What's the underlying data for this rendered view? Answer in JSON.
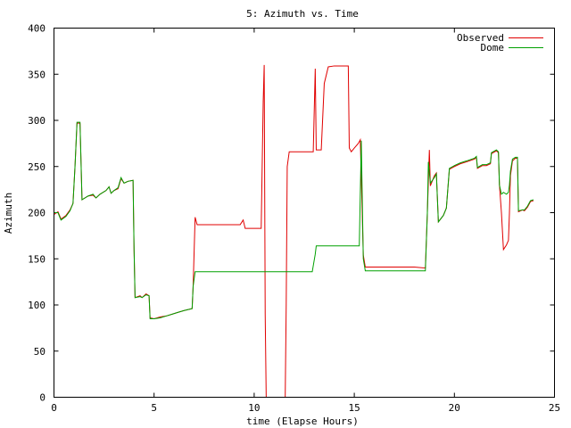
{
  "chart_data": {
    "type": "line",
    "title": "5: Azimuth vs. Time",
    "xlabel": "time (Elapse Hours)",
    "ylabel": "Azimuth",
    "xlim": [
      0,
      25
    ],
    "ylim": [
      0,
      400
    ],
    "x_ticks": [
      0,
      5,
      10,
      15,
      20,
      25
    ],
    "y_ticks": [
      0,
      50,
      100,
      150,
      200,
      250,
      300,
      350,
      400
    ],
    "grid": false,
    "legend": "top-right",
    "series": [
      {
        "name": "Observed",
        "color": "#e00000",
        "points": [
          [
            0.0,
            198
          ],
          [
            0.2,
            201
          ],
          [
            0.35,
            193
          ],
          [
            0.6,
            197
          ],
          [
            0.8,
            203
          ],
          [
            0.95,
            210
          ],
          [
            1.05,
            250
          ],
          [
            1.15,
            297
          ],
          [
            1.3,
            297
          ],
          [
            1.4,
            214
          ],
          [
            1.7,
            218
          ],
          [
            1.95,
            219
          ],
          [
            2.1,
            216
          ],
          [
            2.3,
            220
          ],
          [
            2.6,
            224
          ],
          [
            2.75,
            228
          ],
          [
            2.85,
            221
          ],
          [
            3.0,
            224
          ],
          [
            3.2,
            226
          ],
          [
            3.35,
            237
          ],
          [
            3.5,
            232
          ],
          [
            3.7,
            234
          ],
          [
            3.95,
            235
          ],
          [
            4.0,
            160
          ],
          [
            4.05,
            108
          ],
          [
            4.3,
            110
          ],
          [
            4.4,
            108
          ],
          [
            4.6,
            112
          ],
          [
            4.75,
            110
          ],
          [
            4.8,
            86
          ],
          [
            5.0,
            85
          ],
          [
            5.3,
            87
          ],
          [
            5.6,
            88
          ],
          [
            5.9,
            90
          ],
          [
            6.2,
            92
          ],
          [
            6.5,
            94
          ],
          [
            6.9,
            96
          ],
          [
            6.95,
            120
          ],
          [
            7.05,
            195
          ],
          [
            7.15,
            187
          ],
          [
            7.5,
            187
          ],
          [
            8.5,
            187
          ],
          [
            9.3,
            187
          ],
          [
            9.45,
            192
          ],
          [
            9.55,
            183
          ],
          [
            10.0,
            183
          ],
          [
            10.35,
            183
          ],
          [
            10.45,
            320
          ],
          [
            10.5,
            360
          ],
          [
            10.55,
            90
          ],
          [
            10.6,
            0
          ],
          [
            11.55,
            0
          ],
          [
            11.6,
            100
          ],
          [
            11.65,
            250
          ],
          [
            11.75,
            266
          ],
          [
            12.5,
            266
          ],
          [
            12.95,
            266
          ],
          [
            13.05,
            356
          ],
          [
            13.1,
            268
          ],
          [
            13.35,
            268
          ],
          [
            13.5,
            340
          ],
          [
            13.7,
            358
          ],
          [
            14.0,
            359
          ],
          [
            14.5,
            359
          ],
          [
            14.7,
            359
          ],
          [
            14.75,
            270
          ],
          [
            14.85,
            266
          ],
          [
            15.0,
            270
          ],
          [
            15.2,
            275
          ],
          [
            15.3,
            279
          ],
          [
            15.45,
            154
          ],
          [
            15.55,
            141
          ],
          [
            16.5,
            141
          ],
          [
            18.0,
            141
          ],
          [
            18.55,
            140
          ],
          [
            18.65,
            200
          ],
          [
            18.75,
            268
          ],
          [
            18.8,
            229
          ],
          [
            19.0,
            240
          ],
          [
            19.1,
            243
          ],
          [
            19.2,
            190
          ],
          [
            19.45,
            197
          ],
          [
            19.6,
            205
          ],
          [
            19.75,
            247
          ],
          [
            20.0,
            250
          ],
          [
            20.3,
            253
          ],
          [
            20.6,
            255
          ],
          [
            21.0,
            258
          ],
          [
            21.1,
            260
          ],
          [
            21.15,
            248
          ],
          [
            21.4,
            251
          ],
          [
            21.6,
            251
          ],
          [
            21.8,
            253
          ],
          [
            21.85,
            264
          ],
          [
            22.1,
            267
          ],
          [
            22.2,
            265
          ],
          [
            22.25,
            230
          ],
          [
            22.35,
            200
          ],
          [
            22.45,
            160
          ],
          [
            22.6,
            165
          ],
          [
            22.7,
            170
          ],
          [
            22.75,
            200
          ],
          [
            22.8,
            240
          ],
          [
            22.9,
            256
          ],
          [
            23.05,
            259
          ],
          [
            23.15,
            259
          ],
          [
            23.2,
            201
          ],
          [
            23.4,
            203
          ],
          [
            23.5,
            202
          ],
          [
            23.65,
            206
          ],
          [
            23.8,
            212
          ],
          [
            23.95,
            213
          ]
        ]
      },
      {
        "name": "Dome",
        "color": "#00a000",
        "points": [
          [
            0.0,
            200
          ],
          [
            0.2,
            200
          ],
          [
            0.35,
            192
          ],
          [
            0.6,
            196
          ],
          [
            0.8,
            202
          ],
          [
            0.95,
            210
          ],
          [
            1.05,
            250
          ],
          [
            1.15,
            298
          ],
          [
            1.3,
            298
          ],
          [
            1.4,
            214
          ],
          [
            1.7,
            218
          ],
          [
            1.95,
            220
          ],
          [
            2.1,
            216
          ],
          [
            2.3,
            220
          ],
          [
            2.6,
            224
          ],
          [
            2.75,
            228
          ],
          [
            2.85,
            221
          ],
          [
            3.0,
            224
          ],
          [
            3.2,
            227
          ],
          [
            3.35,
            238
          ],
          [
            3.5,
            232
          ],
          [
            3.7,
            234
          ],
          [
            3.95,
            235
          ],
          [
            4.0,
            160
          ],
          [
            4.05,
            108
          ],
          [
            4.3,
            109
          ],
          [
            4.4,
            108
          ],
          [
            4.6,
            111
          ],
          [
            4.75,
            110
          ],
          [
            4.8,
            85
          ],
          [
            5.0,
            85
          ],
          [
            5.3,
            86
          ],
          [
            5.6,
            88
          ],
          [
            5.9,
            90
          ],
          [
            6.2,
            92
          ],
          [
            6.5,
            94
          ],
          [
            6.9,
            96
          ],
          [
            6.95,
            120
          ],
          [
            7.05,
            136
          ],
          [
            8.0,
            136
          ],
          [
            9.0,
            136
          ],
          [
            10.0,
            136
          ],
          [
            11.0,
            136
          ],
          [
            12.0,
            136
          ],
          [
            12.9,
            136
          ],
          [
            13.05,
            155
          ],
          [
            13.1,
            164
          ],
          [
            14.0,
            164
          ],
          [
            14.5,
            164
          ],
          [
            15.0,
            164
          ],
          [
            15.25,
            164
          ],
          [
            15.35,
            278
          ],
          [
            15.45,
            150
          ],
          [
            15.55,
            137
          ],
          [
            16.5,
            137
          ],
          [
            17.5,
            137
          ],
          [
            18.55,
            137
          ],
          [
            18.65,
            200
          ],
          [
            18.7,
            255
          ],
          [
            18.8,
            232
          ],
          [
            19.0,
            238
          ],
          [
            19.1,
            242
          ],
          [
            19.2,
            190
          ],
          [
            19.45,
            197
          ],
          [
            19.6,
            205
          ],
          [
            19.75,
            248
          ],
          [
            20.0,
            251
          ],
          [
            20.3,
            254
          ],
          [
            20.6,
            256
          ],
          [
            21.0,
            259
          ],
          [
            21.1,
            261
          ],
          [
            21.15,
            249
          ],
          [
            21.4,
            252
          ],
          [
            21.6,
            252
          ],
          [
            21.8,
            254
          ],
          [
            21.85,
            265
          ],
          [
            22.1,
            268
          ],
          [
            22.2,
            266
          ],
          [
            22.25,
            230
          ],
          [
            22.35,
            220
          ],
          [
            22.45,
            222
          ],
          [
            22.6,
            220
          ],
          [
            22.7,
            222
          ],
          [
            22.75,
            230
          ],
          [
            22.8,
            245
          ],
          [
            22.9,
            258
          ],
          [
            23.05,
            260
          ],
          [
            23.15,
            260
          ],
          [
            23.2,
            202
          ],
          [
            23.4,
            203
          ],
          [
            23.5,
            203
          ],
          [
            23.65,
            207
          ],
          [
            23.8,
            213
          ],
          [
            23.95,
            214
          ]
        ]
      }
    ]
  }
}
